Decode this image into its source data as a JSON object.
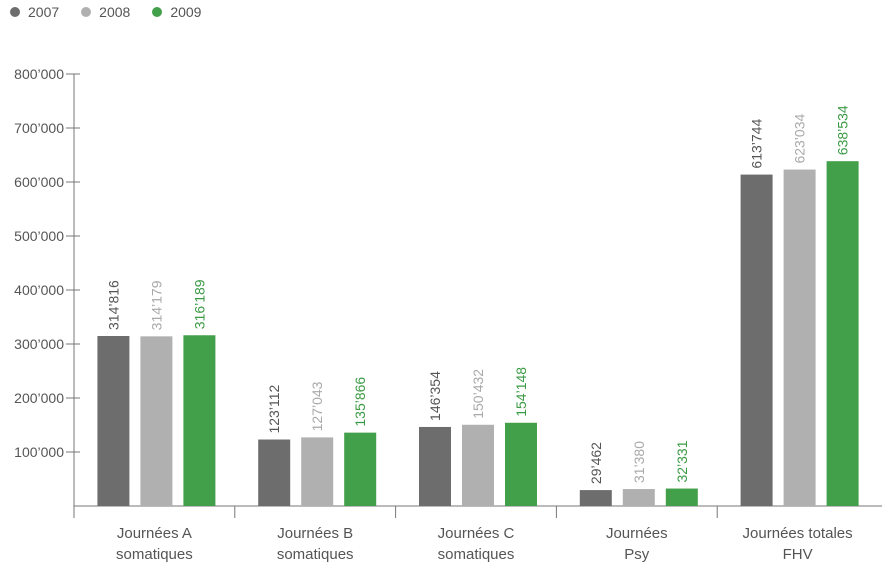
{
  "chart_data": {
    "type": "bar",
    "categories": [
      [
        "Journées A",
        "somatiques"
      ],
      [
        "Journées B",
        "somatiques"
      ],
      [
        "Journées C",
        "somatiques"
      ],
      [
        "Journées",
        "Psy"
      ],
      [
        "Journées totales",
        "FHV"
      ]
    ],
    "series": [
      {
        "name": "2007",
        "color": "#6d6d6d",
        "label_color": "#555555",
        "values": [
          314816,
          123112,
          146354,
          29462,
          613744
        ],
        "labels": [
          "314’816",
          "123’112",
          "146’354",
          "29’462",
          "613’744"
        ]
      },
      {
        "name": "2008",
        "color": "#b0b0b0",
        "label_color": "#a9a9a9",
        "values": [
          314179,
          127043,
          150432,
          31380,
          623034
        ],
        "labels": [
          "314’179",
          "127’043",
          "150’432",
          "31’380",
          "623’034"
        ]
      },
      {
        "name": "2009",
        "color": "#43a04a",
        "label_color": "#3a9a44",
        "values": [
          316189,
          135866,
          154148,
          32331,
          638534
        ],
        "labels": [
          "316’189",
          "135’866",
          "154’148",
          "32’331",
          "638’534"
        ]
      }
    ],
    "ylim": [
      0,
      800000
    ],
    "yticks": [
      {
        "value": 100000,
        "label": "100’000"
      },
      {
        "value": 200000,
        "label": "200’000"
      },
      {
        "value": 300000,
        "label": "300’000"
      },
      {
        "value": 400000,
        "label": "400’000"
      },
      {
        "value": 500000,
        "label": "500’000"
      },
      {
        "value": 600000,
        "label": "600’000"
      },
      {
        "value": 700000,
        "label": "700’000"
      },
      {
        "value": 800000,
        "label": "800’000"
      }
    ],
    "legend_position": "top-left",
    "grid": false
  }
}
